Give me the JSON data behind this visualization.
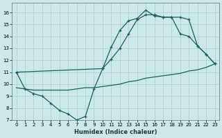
{
  "xlabel": "Humidex (Indice chaleur)",
  "bg_color": "#cce8e8",
  "grid_color": "#aacccc",
  "line_color": "#1a6060",
  "xlim": [
    -0.5,
    23.5
  ],
  "ylim": [
    7,
    16.8
  ],
  "xticks": [
    0,
    1,
    2,
    3,
    4,
    5,
    6,
    7,
    8,
    9,
    10,
    11,
    12,
    13,
    14,
    15,
    16,
    17,
    18,
    19,
    20,
    21,
    22,
    23
  ],
  "yticks": [
    7,
    8,
    9,
    10,
    11,
    12,
    13,
    14,
    15,
    16
  ],
  "line1_x": [
    0,
    1,
    2,
    3,
    4,
    5,
    6,
    7,
    8,
    9,
    10,
    11,
    12,
    13,
    14,
    15,
    16,
    17,
    18,
    19,
    20,
    21,
    22,
    23
  ],
  "line1_y": [
    11,
    9.6,
    9.2,
    9.0,
    8.4,
    7.8,
    7.5,
    7.0,
    7.3,
    9.6,
    11.3,
    13.1,
    14.5,
    15.3,
    15.5,
    16.2,
    15.7,
    15.6,
    15.6,
    15.6,
    15.4,
    13.2,
    12.5,
    11.7
  ],
  "line2_x": [
    0,
    10,
    11,
    12,
    13,
    14,
    15,
    16,
    17,
    18,
    19,
    20,
    21,
    22,
    23
  ],
  "line2_y": [
    11,
    11.3,
    12.1,
    13.0,
    14.2,
    15.4,
    15.8,
    15.8,
    15.6,
    15.6,
    14.2,
    14.0,
    13.2,
    12.5,
    11.7
  ],
  "line3_x": [
    0,
    1,
    2,
    3,
    4,
    5,
    6,
    7,
    8,
    9,
    10,
    11,
    12,
    13,
    14,
    15,
    16,
    17,
    18,
    19,
    20,
    21,
    22,
    23
  ],
  "line3_y": [
    9.7,
    9.6,
    9.5,
    9.5,
    9.5,
    9.5,
    9.5,
    9.6,
    9.7,
    9.7,
    9.8,
    9.9,
    10.0,
    10.2,
    10.3,
    10.5,
    10.6,
    10.7,
    10.8,
    10.9,
    11.1,
    11.2,
    11.4,
    11.7
  ]
}
